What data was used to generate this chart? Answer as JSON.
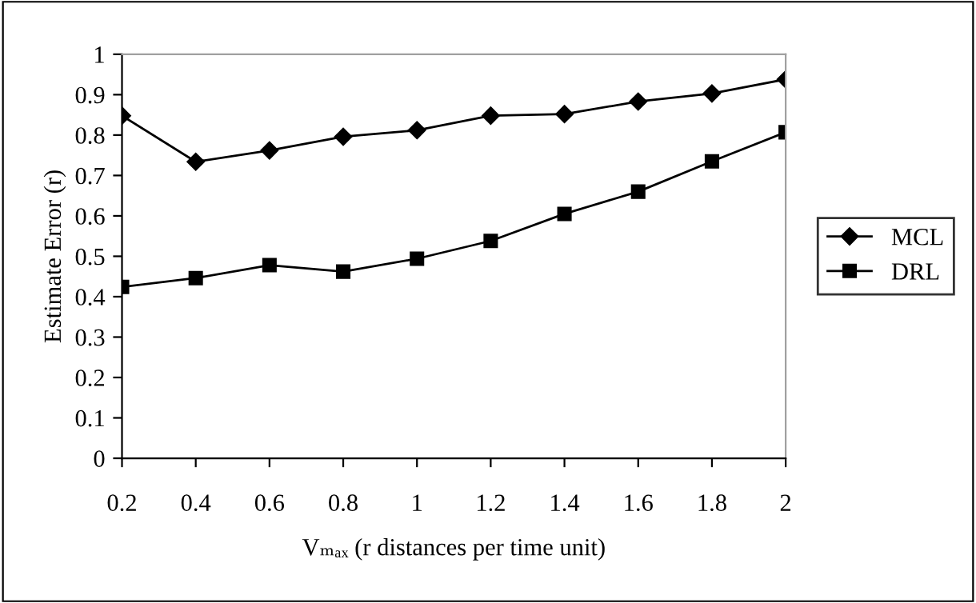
{
  "chart_data": {
    "type": "line",
    "xlabel": "Vₘₐₓ (r distances per time unit)",
    "ylabel": "Estimate Error (r)",
    "categories": [
      "0.2",
      "0.4",
      "0.6",
      "0.8",
      "1",
      "1.2",
      "1.4",
      "1.6",
      "1.8",
      "2"
    ],
    "series": [
      {
        "name": "MCL",
        "color": "#000000",
        "marker": "diamond",
        "values": [
          0.848,
          0.734,
          0.762,
          0.796,
          0.812,
          0.848,
          0.852,
          0.883,
          0.903,
          0.938
        ]
      },
      {
        "name": "DRL",
        "color": "#000000",
        "marker": "square",
        "values": [
          0.424,
          0.446,
          0.478,
          0.462,
          0.494,
          0.538,
          0.605,
          0.66,
          0.735,
          0.807
        ]
      }
    ],
    "ylim": [
      0,
      1
    ],
    "yticks": [
      0,
      0.1,
      0.2,
      0.3,
      0.4,
      0.5,
      0.6,
      0.7,
      0.8,
      0.9,
      1
    ],
    "grid": false,
    "legend": "right",
    "line_style": "solid"
  }
}
